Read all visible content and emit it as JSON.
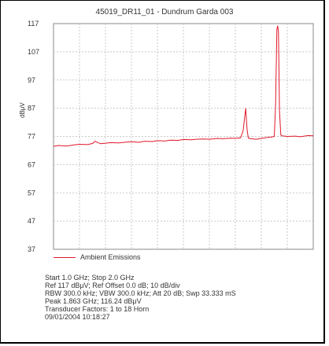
{
  "chart_data": {
    "type": "line",
    "title": "45019_DR11_01 - Dundrum Garda 003",
    "ylabel": "dBμV",
    "xlabel": "",
    "xlim": [
      1.0,
      2.0
    ],
    "ylim": [
      37,
      117
    ],
    "yticks": [
      "117",
      "107",
      "97",
      "87",
      "77",
      "67",
      "57",
      "47",
      "37"
    ],
    "grid": true,
    "legend_position": "bottom-left",
    "series": [
      {
        "name": "Ambient Emissions",
        "color": "#e0182a",
        "x": [
          1.0,
          1.02,
          1.05,
          1.08,
          1.1,
          1.13,
          1.15,
          1.16,
          1.18,
          1.2,
          1.22,
          1.25,
          1.28,
          1.3,
          1.33,
          1.35,
          1.38,
          1.4,
          1.43,
          1.45,
          1.48,
          1.5,
          1.53,
          1.55,
          1.58,
          1.6,
          1.63,
          1.65,
          1.68,
          1.7,
          1.72,
          1.73,
          1.74,
          1.745,
          1.75,
          1.76,
          1.78,
          1.8,
          1.82,
          1.84,
          1.85,
          1.855,
          1.86,
          1.863,
          1.866,
          1.87,
          1.875,
          1.88,
          1.9,
          1.93,
          1.95,
          1.98,
          2.0
        ],
        "y": [
          73.5,
          73.8,
          73.6,
          74.0,
          74.2,
          74.1,
          74.5,
          75.3,
          74.4,
          74.6,
          74.8,
          74.7,
          75.0,
          75.1,
          74.9,
          75.3,
          75.2,
          75.5,
          75.4,
          75.7,
          75.6,
          75.9,
          75.8,
          76.0,
          76.1,
          76.0,
          76.3,
          76.2,
          76.4,
          76.3,
          76.5,
          79.0,
          87.0,
          79.5,
          76.4,
          76.2,
          76.0,
          76.3,
          76.6,
          76.8,
          77.0,
          88.0,
          115.0,
          116.24,
          114.0,
          86.0,
          77.5,
          77.2,
          77.0,
          77.1,
          76.9,
          77.3,
          77.2
        ]
      }
    ],
    "info_lines": [
      "Start 1.0 GHz; Stop 2.0 GHz",
      "Ref 117 dBμV; Ref Offset 0.0 dB; 10 dB/div",
      "RBW 300.0 kHz; VBW 300.0 kHz; Att 20 dB; Swp 33.333 mS",
      "Peak 1.863 GHz; 116.24 dBμV",
      "Transducer Factors: 1 to 18 Horn",
      "09/01/2004 10:18:27"
    ]
  }
}
